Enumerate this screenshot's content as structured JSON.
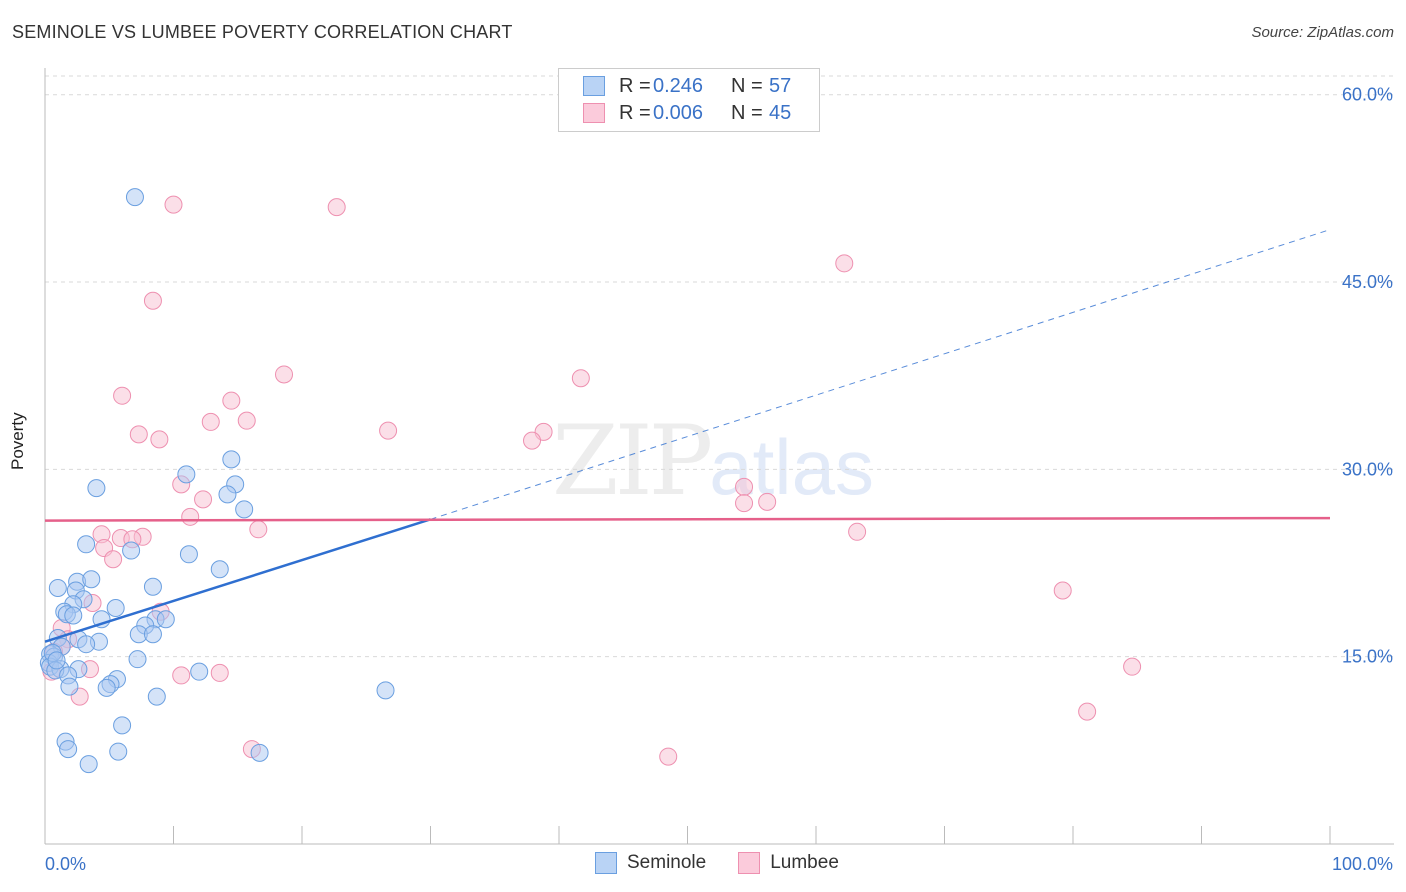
{
  "header": {
    "title": "SEMINOLE VS LUMBEE POVERTY CORRELATION CHART",
    "source": "Source: ZipAtlas.com"
  },
  "watermark": {
    "zip": "ZIP",
    "atlas": "atlas"
  },
  "legend_top": {
    "rows": [
      {
        "r_label": "R =",
        "r_value": "0.246",
        "n_label": "N =",
        "n_value": "57",
        "color": "#6fa0e8"
      },
      {
        "r_label": "R =",
        "r_value": "0.006",
        "n_label": "N =",
        "n_value": "45",
        "color": "#f29bb8"
      }
    ]
  },
  "legend_bottom": {
    "seminole": "Seminole",
    "lumbee": "Lumbee"
  },
  "colors": {
    "seminole_fill": "#a9c8f2",
    "seminole_stroke": "#6a9fe0",
    "seminole_line": "#2f6fd0",
    "lumbee_fill": "#f8c0d2",
    "lumbee_stroke": "#ee90b0",
    "lumbee_line": "#e5608a",
    "grid": "#d9d9d9",
    "tick_label": "#3a72c7"
  },
  "chart_data": {
    "type": "scatter",
    "title": "SEMINOLE VS LUMBEE POVERTY CORRELATION CHART",
    "xlabel": "",
    "ylabel": "Poverty",
    "xlim": [
      0,
      100
    ],
    "ylim": [
      0,
      61.5
    ],
    "x_tick_labels": [
      {
        "value": 0,
        "label": "0.0%"
      },
      {
        "value": 100,
        "label": "100.0%"
      }
    ],
    "y_ticks": [
      {
        "value": 15,
        "label": "15.0%"
      },
      {
        "value": 30,
        "label": "30.0%"
      },
      {
        "value": 45,
        "label": "45.0%"
      },
      {
        "value": 60,
        "label": "60.0%"
      }
    ],
    "series": [
      {
        "name": "Seminole",
        "r": 0.246,
        "n": 57,
        "trend": {
          "x0": 0,
          "y0": 16.2,
          "x1": 30,
          "y1": 26.0,
          "dash_to_x": 100,
          "dash_to_y": 49.2
        },
        "points": [
          [
            7,
            51.8
          ],
          [
            4,
            28.5
          ],
          [
            11,
            29.6
          ],
          [
            14.5,
            30.8
          ],
          [
            14.8,
            28.8
          ],
          [
            14.2,
            28.0
          ],
          [
            15.5,
            26.8
          ],
          [
            3.2,
            24.0
          ],
          [
            6.7,
            23.5
          ],
          [
            11.2,
            23.2
          ],
          [
            13.6,
            22.0
          ],
          [
            2.5,
            21.0
          ],
          [
            3.6,
            21.2
          ],
          [
            1,
            20.5
          ],
          [
            2.4,
            20.3
          ],
          [
            8.4,
            20.6
          ],
          [
            3,
            19.6
          ],
          [
            2.2,
            19.2
          ],
          [
            5.5,
            18.9
          ],
          [
            1.5,
            18.6
          ],
          [
            1.7,
            18.4
          ],
          [
            4.4,
            18.0
          ],
          [
            8.6,
            18.0
          ],
          [
            9.4,
            18.0
          ],
          [
            7.8,
            17.5
          ],
          [
            7.3,
            16.8
          ],
          [
            8.4,
            16.8
          ],
          [
            1,
            16.5
          ],
          [
            2.6,
            16.4
          ],
          [
            4.2,
            16.2
          ],
          [
            3.2,
            16.0
          ],
          [
            1.3,
            15.8
          ],
          [
            0.4,
            15.2
          ],
          [
            0.7,
            15.0
          ],
          [
            0.3,
            14.5
          ],
          [
            7.2,
            14.8
          ],
          [
            0.4,
            14.2
          ],
          [
            1.2,
            14.0
          ],
          [
            2.6,
            14.0
          ],
          [
            12,
            13.8
          ],
          [
            0.8,
            13.9
          ],
          [
            1.8,
            13.5
          ],
          [
            5.6,
            13.2
          ],
          [
            5.1,
            12.8
          ],
          [
            1.9,
            12.6
          ],
          [
            4.8,
            12.5
          ],
          [
            26.5,
            12.3
          ],
          [
            8.7,
            11.8
          ],
          [
            6,
            9.5
          ],
          [
            1.6,
            8.2
          ],
          [
            1.8,
            7.6
          ],
          [
            5.7,
            7.4
          ],
          [
            16.7,
            7.3
          ],
          [
            3.4,
            6.4
          ],
          [
            0.6,
            15.3
          ],
          [
            2.2,
            18.3
          ],
          [
            0.9,
            14.7
          ]
        ]
      },
      {
        "name": "Lumbee",
        "r": 0.006,
        "n": 45,
        "trend": {
          "x0": 0,
          "y0": 25.9,
          "x1": 100,
          "y1": 26.1
        },
        "points": [
          [
            10,
            51.2
          ],
          [
            22.7,
            51.0
          ],
          [
            62.2,
            46.5
          ],
          [
            8.4,
            43.5
          ],
          [
            18.6,
            37.6
          ],
          [
            41.7,
            37.3
          ],
          [
            6,
            35.9
          ],
          [
            14.5,
            35.5
          ],
          [
            12.9,
            33.8
          ],
          [
            15.7,
            33.9
          ],
          [
            26.7,
            33.1
          ],
          [
            38.8,
            33.0
          ],
          [
            7.3,
            32.8
          ],
          [
            8.9,
            32.4
          ],
          [
            37.9,
            32.3
          ],
          [
            10.6,
            28.8
          ],
          [
            54.4,
            28.6
          ],
          [
            12.3,
            27.6
          ],
          [
            54.4,
            27.3
          ],
          [
            56.2,
            27.4
          ],
          [
            11.3,
            26.2
          ],
          [
            16.6,
            25.2
          ],
          [
            63.2,
            25.0
          ],
          [
            4.4,
            24.8
          ],
          [
            5.9,
            24.5
          ],
          [
            7.6,
            24.6
          ],
          [
            6.8,
            24.4
          ],
          [
            4.6,
            23.7
          ],
          [
            5.3,
            22.8
          ],
          [
            79.2,
            20.3
          ],
          [
            3.7,
            19.3
          ],
          [
            9,
            18.6
          ],
          [
            1.3,
            17.3
          ],
          [
            1.8,
            16.4
          ],
          [
            1.3,
            15.8
          ],
          [
            0.7,
            15.4
          ],
          [
            10.6,
            13.5
          ],
          [
            13.6,
            13.7
          ],
          [
            3.5,
            14.0
          ],
          [
            84.6,
            14.2
          ],
          [
            2.7,
            11.8
          ],
          [
            81.1,
            10.6
          ],
          [
            16.1,
            7.6
          ],
          [
            48.5,
            7.0
          ],
          [
            0.5,
            13.8
          ]
        ]
      }
    ]
  }
}
